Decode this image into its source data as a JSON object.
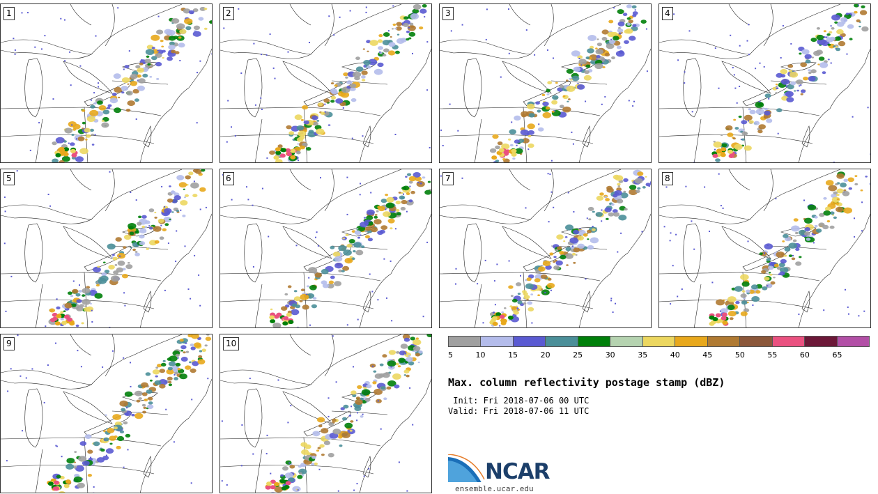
{
  "figure": {
    "title": "Max. column reflectivity postage stamp (dBZ)",
    "init": " Init: Fri 2018-07-06 00 UTC",
    "valid": "Valid: Fri 2018-07-06 11 UTC",
    "url": "ensemble.ucar.edu",
    "logo_text": "NCAR"
  },
  "panels": [
    {
      "label": "1"
    },
    {
      "label": "2"
    },
    {
      "label": "3"
    },
    {
      "label": "4"
    },
    {
      "label": "5"
    },
    {
      "label": "6"
    },
    {
      "label": "7"
    },
    {
      "label": "8"
    },
    {
      "label": "9"
    },
    {
      "label": "10"
    }
  ],
  "colorbar": {
    "ticks": [
      "5",
      "10",
      "15",
      "20",
      "25",
      "30",
      "35",
      "40",
      "45",
      "50",
      "55",
      "60",
      "65"
    ],
    "colors": [
      "#a0a0a0",
      "#b4bceb",
      "#5a5ad2",
      "#4b8f99",
      "#00800a",
      "#b5d3b0",
      "#ecd760",
      "#e8a81c",
      "#b07a32",
      "#8b573a",
      "#ea5180",
      "#6c1838",
      "#b24fa6"
    ]
  }
}
